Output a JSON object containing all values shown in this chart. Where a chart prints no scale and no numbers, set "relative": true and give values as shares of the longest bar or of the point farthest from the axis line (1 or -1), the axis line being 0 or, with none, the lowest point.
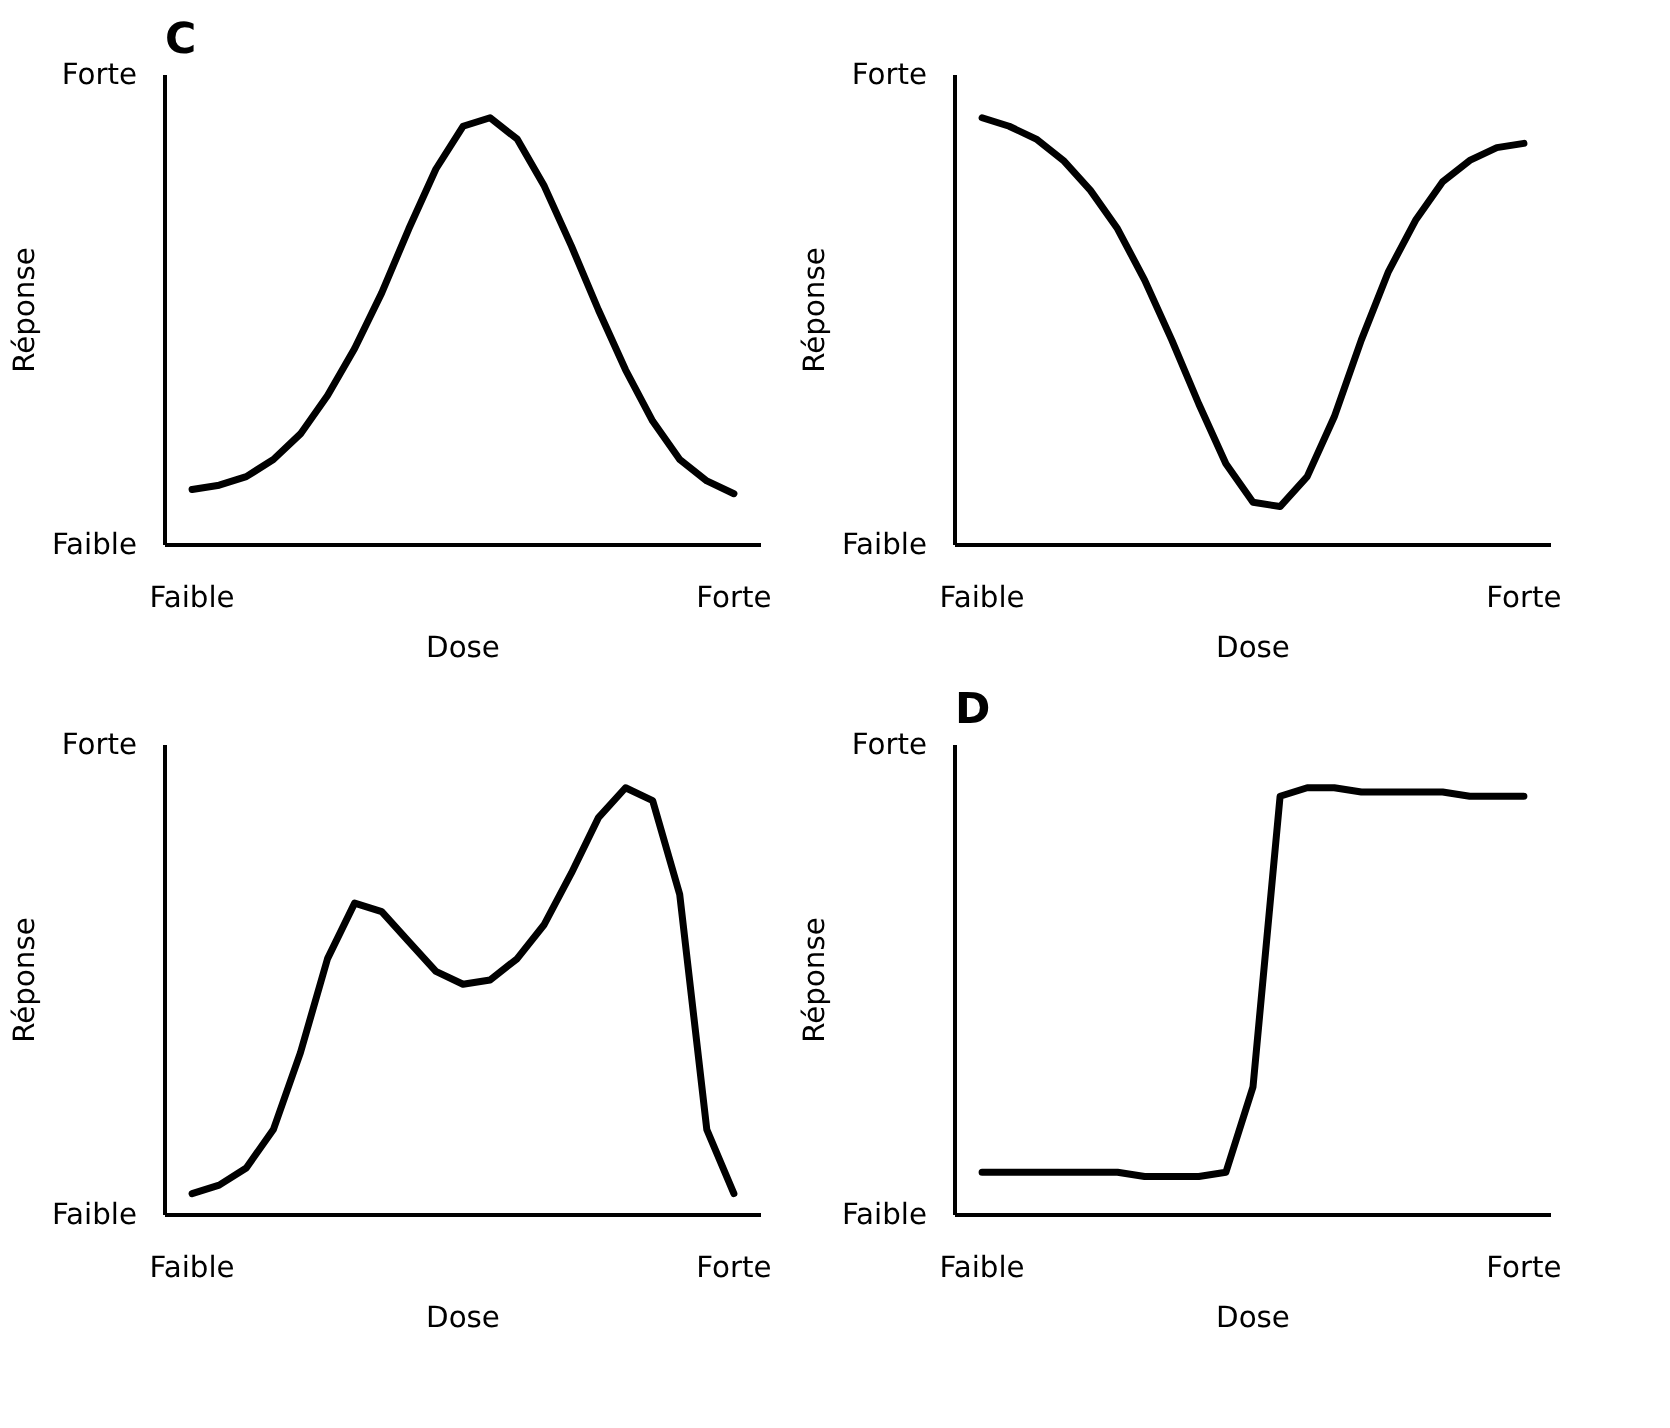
{
  "chart_data": [
    {
      "type": "line",
      "title": "C",
      "xlabel": "Dose",
      "ylabel": "Réponse",
      "relative": true,
      "annotations": [
        "Forte",
        "Faible"
      ],
      "categories": [
        "Faible",
        null,
        null,
        null,
        null,
        null,
        null,
        null,
        null,
        null,
        null,
        null,
        null,
        null,
        null,
        null,
        null,
        null,
        null,
        null,
        "Forte"
      ],
      "series": [
        {
          "color": "#000000",
          "values": [
            0.13,
            0.14,
            0.16,
            0.2,
            0.26,
            0.35,
            0.46,
            0.59,
            0.74,
            0.88,
            0.98,
            1,
            0.95,
            0.84,
            0.7,
            0.55,
            0.41,
            0.29,
            0.2,
            0.15,
            0.12
          ]
        }
      ]
    },
    {
      "type": "line",
      "xlabel": "Dose",
      "ylabel": "Réponse",
      "relative": true,
      "annotations": [
        "Forte",
        "Faible"
      ],
      "categories": [
        "Faible",
        null,
        null,
        null,
        null,
        null,
        null,
        null,
        null,
        null,
        null,
        null,
        null,
        null,
        null,
        null,
        null,
        null,
        null,
        null,
        "Forte"
      ],
      "series": [
        {
          "color": "#000000",
          "values": [
            1,
            0.98,
            0.95,
            0.9,
            0.83,
            0.74,
            0.62,
            0.48,
            0.33,
            0.19,
            0.1,
            0.09,
            0.16,
            0.3,
            0.48,
            0.64,
            0.76,
            0.85,
            0.9,
            0.93,
            0.94
          ]
        }
      ]
    },
    {
      "type": "line",
      "xlabel": "Dose",
      "ylabel": "Réponse",
      "relative": true,
      "annotations": [
        "Forte",
        "Faible"
      ],
      "categories": [
        "Faible",
        null,
        null,
        null,
        null,
        null,
        null,
        null,
        null,
        null,
        null,
        null,
        null,
        null,
        null,
        null,
        null,
        null,
        null,
        null,
        "Forte"
      ],
      "series": [
        {
          "color": "#000000",
          "values": [
            0.05,
            0.07,
            0.11,
            0.2,
            0.38,
            0.6,
            0.73,
            0.71,
            0.64,
            0.57,
            0.54,
            0.55,
            0.6,
            0.68,
            0.8,
            0.93,
            1,
            0.97,
            0.75,
            0.2,
            0.05
          ]
        }
      ]
    },
    {
      "type": "line",
      "title": "D",
      "xlabel": "Dose",
      "ylabel": "Réponse",
      "relative": true,
      "annotations": [
        "Forte",
        "Faible"
      ],
      "categories": [
        "Faible",
        null,
        null,
        null,
        null,
        null,
        null,
        null,
        null,
        null,
        null,
        null,
        null,
        null,
        null,
        null,
        null,
        null,
        null,
        null,
        "Forte"
      ],
      "series": [
        {
          "color": "#000000",
          "values": [
            0.1,
            0.1,
            0.1,
            0.1,
            0.1,
            0.1,
            0.09,
            0.09,
            0.09,
            0.1,
            0.3,
            0.98,
            1,
            1,
            0.99,
            0.99,
            0.99,
            0.99,
            0.98,
            0.98,
            0.98
          ]
        }
      ]
    }
  ]
}
